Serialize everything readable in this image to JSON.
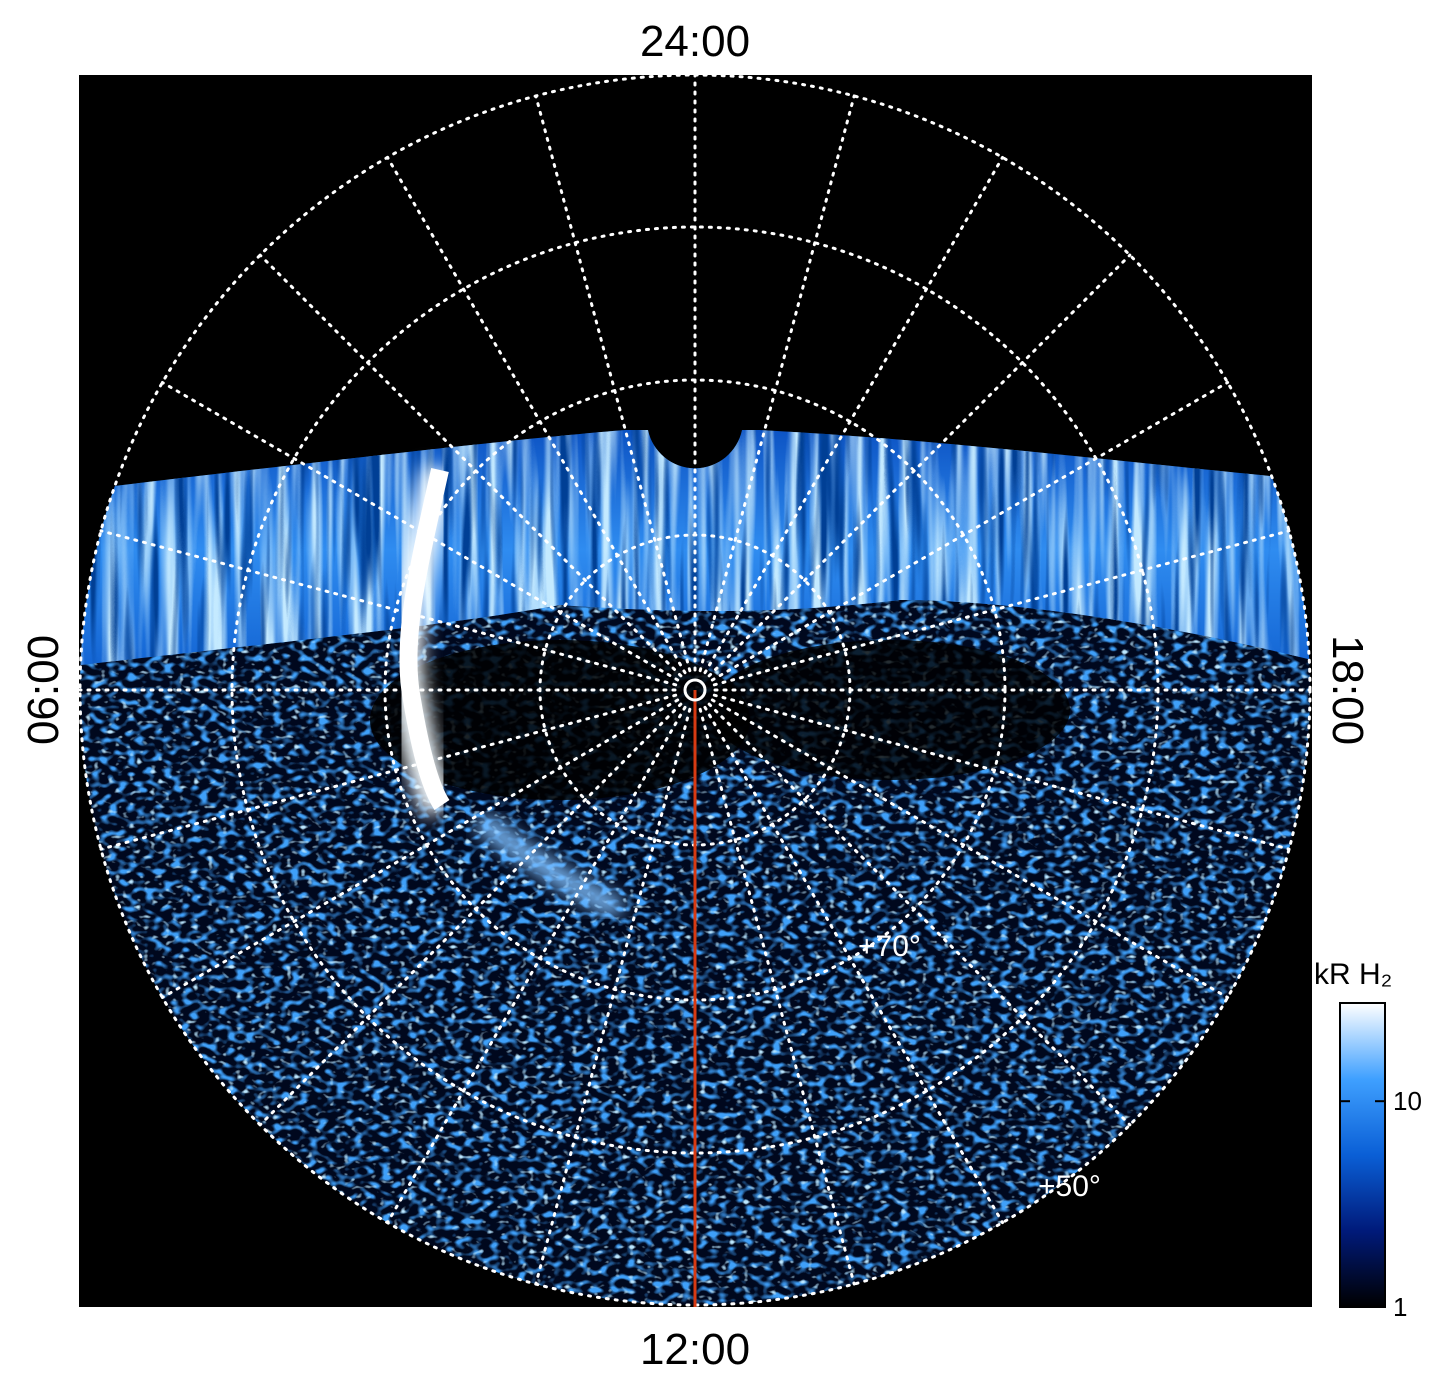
{
  "labels": {
    "top": "24:00",
    "left": "06:00",
    "right": "18:00",
    "bottom": "12:00",
    "lat_inner": "+70°",
    "lat_outer": "+50°"
  },
  "colorbar": {
    "title": "kR H₂",
    "lim": [
      1,
      30
    ],
    "ticks": [
      1,
      10
    ],
    "log": true,
    "colors": [
      "#000000",
      "#001a7a",
      "#0a5fd6",
      "#3fa0ff",
      "#ffffff"
    ]
  }
}
